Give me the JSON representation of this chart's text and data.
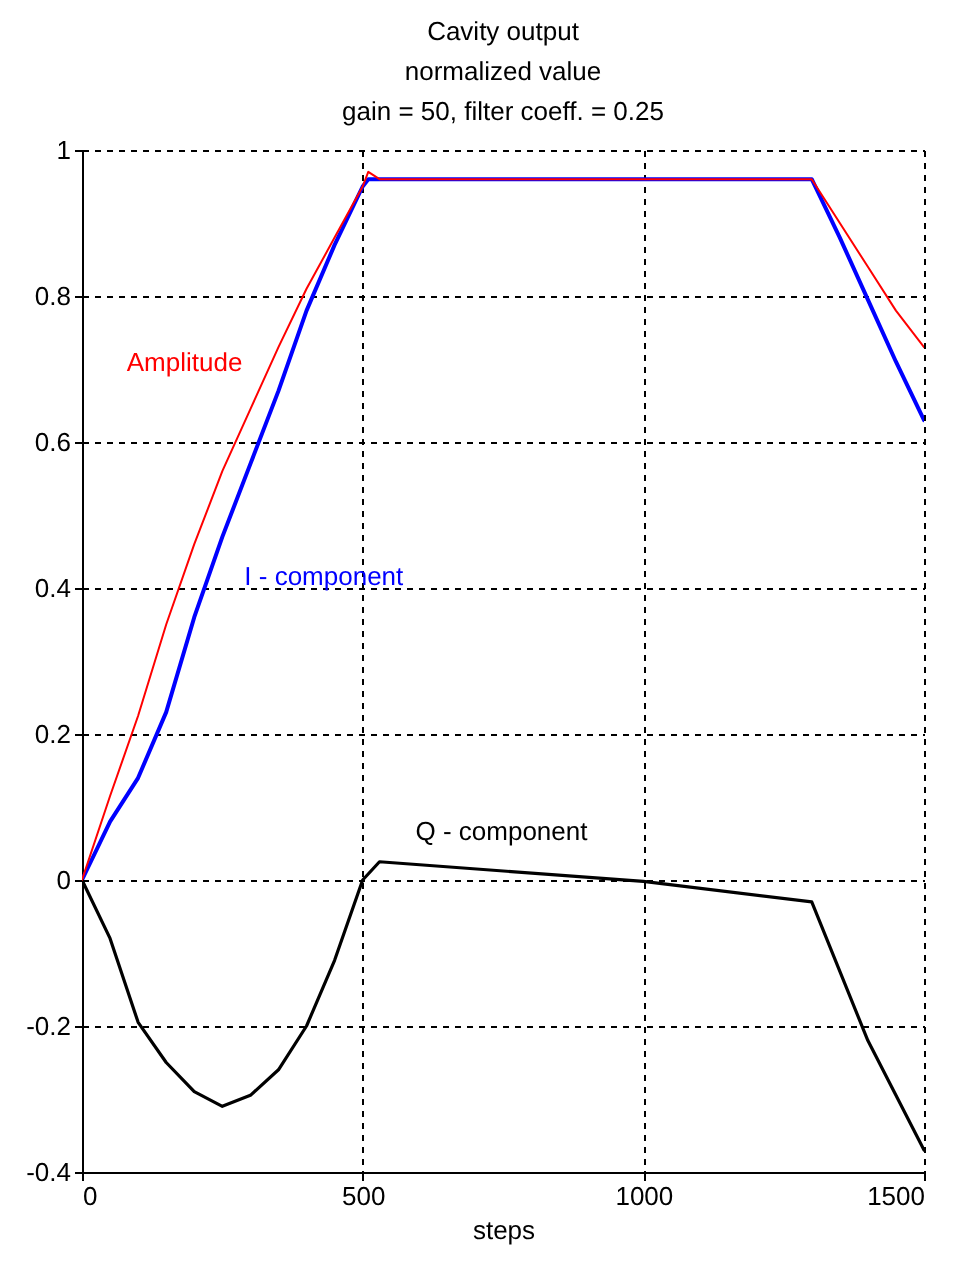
{
  "chart_data": {
    "type": "line",
    "title": "Cavity output",
    "subtitle": "normalized value\ngain = 50, filter coeff. = 0.25",
    "xlabel": "steps",
    "series": [
      {
        "name": "Amplitude",
        "color": "#ff0000",
        "x": [
          0,
          50,
          100,
          150,
          200,
          250,
          300,
          350,
          400,
          450,
          500,
          510,
          530,
          1300,
          1350,
          1400,
          1450,
          1500
        ],
        "values": [
          0,
          0.115,
          0.225,
          0.35,
          0.46,
          0.56,
          0.645,
          0.73,
          0.81,
          0.88,
          0.95,
          0.97,
          0.96,
          0.96,
          0.9,
          0.84,
          0.78,
          0.73
        ]
      },
      {
        "name": "I - component",
        "color": "#0000ff",
        "x": [
          0,
          50,
          100,
          150,
          200,
          250,
          300,
          350,
          400,
          450,
          500,
          510,
          1300,
          1350,
          1400,
          1450,
          1500
        ],
        "values": [
          0,
          0.08,
          0.14,
          0.23,
          0.36,
          0.47,
          0.57,
          0.67,
          0.78,
          0.87,
          0.95,
          0.96,
          0.96,
          0.88,
          0.795,
          0.71,
          0.63
        ]
      },
      {
        "name": "Q - component",
        "color": "#000000",
        "x": [
          0,
          50,
          100,
          150,
          200,
          250,
          300,
          350,
          400,
          450,
          500,
          530,
          1000,
          1300,
          1400,
          1500
        ],
        "values": [
          0,
          -0.08,
          -0.195,
          -0.25,
          -0.29,
          -0.31,
          -0.295,
          -0.26,
          -0.2,
          -0.11,
          0,
          0.025,
          -0.002,
          -0.03,
          -0.22,
          -0.37
        ]
      }
    ],
    "xlim": [
      0,
      1500
    ],
    "xticks": [
      0,
      500,
      1000,
      1500
    ],
    "ylim": [
      -0.4,
      1
    ],
    "yticks": [
      -0.4,
      -0.2,
      0,
      0.2,
      0.4,
      0.6,
      0.8,
      1
    ],
    "grid": true,
    "legend": false,
    "line_style": "solid",
    "marker": "none"
  }
}
